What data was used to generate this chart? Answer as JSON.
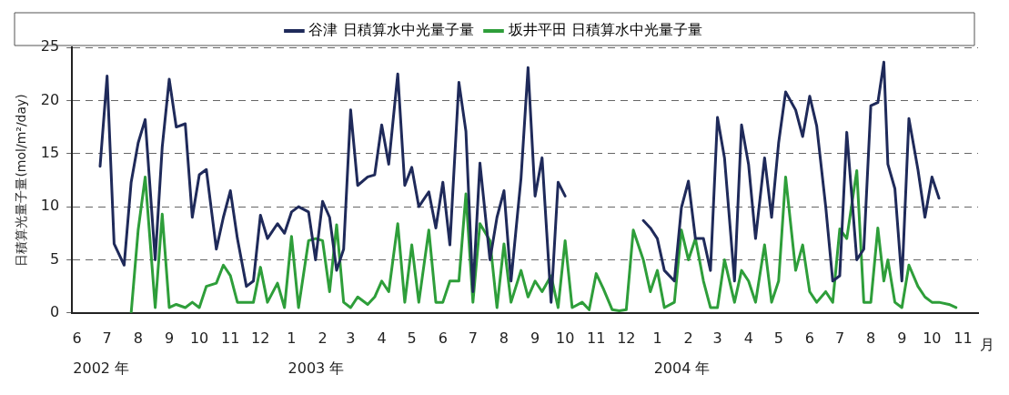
{
  "chart_data": {
    "type": "line",
    "ylabel": "日積算光量子量(mol/m²/day)",
    "xlabel": "月",
    "x": [
      "2002-07-08",
      "2002-07-15",
      "2002-07-22",
      "2002-08-01",
      "2002-08-08",
      "2002-08-15",
      "2002-08-22",
      "2002-09-01",
      "2002-09-08",
      "2002-09-15",
      "2002-09-22",
      "2002-10-01",
      "2002-10-08",
      "2002-10-15",
      "2002-10-22",
      "2002-11-01",
      "2002-11-08",
      "2002-11-15",
      "2002-11-22",
      "2002-12-01",
      "2002-12-08",
      "2002-12-15",
      "2002-12-22",
      "2003-01-01",
      "2003-01-08",
      "2003-01-15",
      "2003-01-22",
      "2003-02-01",
      "2003-02-08",
      "2003-02-15",
      "2003-02-22",
      "2003-03-01",
      "2003-03-08",
      "2003-03-15",
      "2003-03-22",
      "2003-04-01",
      "2003-04-08",
      "2003-04-15",
      "2003-04-22",
      "2003-05-01",
      "2003-05-08",
      "2003-05-15",
      "2003-05-22",
      "2003-06-01",
      "2003-06-08",
      "2003-06-15",
      "2003-06-22",
      "2003-07-01",
      "2003-07-08",
      "2003-07-15",
      "2003-07-22",
      "2003-08-01",
      "2003-08-08",
      "2003-08-15",
      "2003-08-22",
      "2003-09-01",
      "2003-09-08",
      "2003-09-15",
      "2003-09-22",
      "2003-10-01",
      "2003-10-08",
      "2003-10-15",
      "2003-10-22",
      "2003-11-01",
      "2003-11-08",
      "2003-11-15",
      "2003-11-22",
      "2003-12-01",
      "2003-12-08",
      "2003-12-15",
      "2003-12-22",
      "2004-01-01",
      "2004-01-08",
      "2004-01-15",
      "2004-01-22",
      "2004-02-01",
      "2004-02-08",
      "2004-02-15",
      "2004-02-22",
      "2004-03-01",
      "2004-03-08",
      "2004-03-15",
      "2004-03-22",
      "2004-04-01",
      "2004-04-08",
      "2004-04-15",
      "2004-04-22",
      "2004-05-01",
      "2004-05-08",
      "2004-05-15",
      "2004-05-22",
      "2004-06-01",
      "2004-06-08",
      "2004-06-15",
      "2004-06-22",
      "2004-07-01",
      "2004-07-08",
      "2004-07-15",
      "2004-07-22",
      "2004-08-01",
      "2004-08-08",
      "2004-08-15",
      "2004-08-22",
      "2004-08-28",
      "2004-09-01",
      "2004-09-08",
      "2004-09-15",
      "2004-09-22",
      "2004-10-01",
      "2004-10-08",
      "2004-10-15",
      "2004-10-22",
      "2004-11-01",
      "2004-11-08"
    ],
    "series": [
      {
        "name": "谷津 日積算水中光量子量",
        "color": "#1f2a5a",
        "values": [
          13.8,
          22.3,
          6.5,
          4.5,
          12.3,
          16,
          18.2,
          5,
          15.6,
          22,
          17.5,
          17.8,
          9,
          13,
          13.5,
          6,
          9,
          11.5,
          7,
          2.5,
          3,
          9.2,
          7,
          8.4,
          7.5,
          9.5,
          10,
          9.5,
          5,
          10.5,
          9,
          4,
          6,
          19.1,
          12,
          12.8,
          13,
          17.7,
          14,
          22.5,
          12,
          13.7,
          10,
          11.4,
          8,
          12.3,
          6.4,
          21.7,
          17.1,
          2,
          14.1,
          5,
          9,
          11.5,
          3,
          12.7,
          23.1,
          11,
          14.6,
          1,
          12.3,
          11,
          null,
          null,
          null,
          null,
          null,
          null,
          null,
          null,
          null,
          8.7,
          8,
          7,
          4,
          3,
          9.9,
          12.4,
          7,
          7,
          4,
          18.4,
          14.6,
          3,
          17.7,
          14,
          7,
          14.6,
          9,
          16,
          20.8,
          19.1,
          16.6,
          20.4,
          17.6,
          10,
          3,
          3.5,
          17,
          5,
          6,
          19.5,
          19.8,
          23.6,
          14,
          11.7,
          3,
          18.3,
          13.5,
          9,
          12.8,
          10.8,
          null,
          null
        ]
      },
      {
        "name": "坂井平田 日積算水中光量子量",
        "color": "#2e9e3a",
        "values": [
          null,
          null,
          null,
          null,
          0,
          7.8,
          12.8,
          0.5,
          9.3,
          0.5,
          0.8,
          0.5,
          1,
          0.5,
          2.5,
          2.8,
          4.5,
          3.5,
          1,
          1,
          1,
          4.3,
          1,
          2.8,
          0.5,
          7.2,
          0.5,
          6.8,
          7,
          6.8,
          2,
          8.3,
          1,
          0.5,
          1.5,
          0.8,
          1.5,
          3,
          2,
          8.4,
          1,
          6.4,
          1,
          7.8,
          1,
          1,
          3,
          3,
          11.2,
          1,
          8.4,
          6.8,
          0.5,
          6.5,
          1,
          4,
          1.5,
          3,
          2,
          3.5,
          0.5,
          6.8,
          0.5,
          1,
          0.3,
          3.7,
          2.3,
          0.3,
          0.2,
          0.3,
          7.8,
          5,
          2,
          4,
          0.5,
          1,
          7.8,
          5,
          7,
          3,
          0.5,
          0.5,
          5,
          1,
          4,
          3,
          1,
          6.4,
          1,
          3,
          12.8,
          4,
          6.4,
          2,
          1,
          2,
          1,
          7.9,
          7,
          13.4,
          1,
          1,
          8,
          3,
          5,
          1,
          0.5,
          4.5,
          2.5,
          1.5,
          1,
          1,
          0.8,
          0.5
        ]
      }
    ],
    "xlim": [
      "2002-06-10",
      "2004-11-30"
    ],
    "xticks": [
      {
        "value": "2002-06-15",
        "label": "6"
      },
      {
        "value": "2002-07-15",
        "label": "7"
      },
      {
        "value": "2002-08-15",
        "label": "8"
      },
      {
        "value": "2002-09-15",
        "label": "9"
      },
      {
        "value": "2002-10-15",
        "label": "10"
      },
      {
        "value": "2002-11-15",
        "label": "11"
      },
      {
        "value": "2002-12-15",
        "label": "12"
      },
      {
        "value": "2003-01-15",
        "label": "1"
      },
      {
        "value": "2003-02-15",
        "label": "2"
      },
      {
        "value": "2003-03-15",
        "label": "3"
      },
      {
        "value": "2003-04-15",
        "label": "4"
      },
      {
        "value": "2003-05-15",
        "label": "5"
      },
      {
        "value": "2003-06-15",
        "label": "6"
      },
      {
        "value": "2003-07-15",
        "label": "7"
      },
      {
        "value": "2003-08-15",
        "label": "8"
      },
      {
        "value": "2003-09-15",
        "label": "9"
      },
      {
        "value": "2003-10-15",
        "label": "10"
      },
      {
        "value": "2003-11-15",
        "label": "11"
      },
      {
        "value": "2003-12-15",
        "label": "12"
      },
      {
        "value": "2004-01-15",
        "label": "1"
      },
      {
        "value": "2004-02-15",
        "label": "2"
      },
      {
        "value": "2004-03-15",
        "label": "3"
      },
      {
        "value": "2004-04-15",
        "label": "4"
      },
      {
        "value": "2004-05-15",
        "label": "5"
      },
      {
        "value": "2004-06-15",
        "label": "6"
      },
      {
        "value": "2004-07-15",
        "label": "7"
      },
      {
        "value": "2004-08-15",
        "label": "8"
      },
      {
        "value": "2004-09-15",
        "label": "9"
      },
      {
        "value": "2004-10-15",
        "label": "10"
      },
      {
        "value": "2004-11-15",
        "label": "11"
      }
    ],
    "ylim": [
      0,
      25
    ],
    "yticks": [
      0,
      5,
      10,
      15,
      20,
      25
    ],
    "annotations": [
      "2002 年",
      "2003 年",
      "2004 年"
    ],
    "grid": "y",
    "line_style": "solid",
    "marker": "none",
    "legend": "top"
  }
}
